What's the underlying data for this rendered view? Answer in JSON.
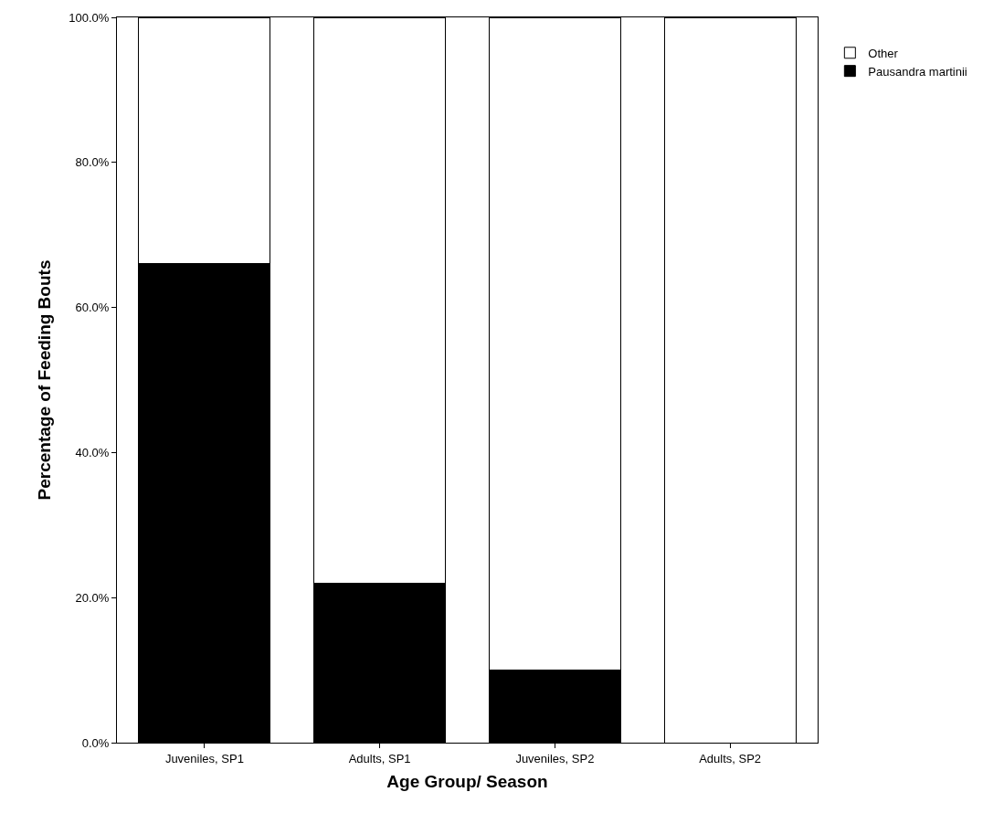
{
  "chart_data": {
    "type": "bar",
    "stacked": true,
    "xlabel": "Age Group/ Season",
    "ylabel": "Percentage of Feeding Bouts",
    "categories": [
      "Juveniles, SP1",
      "Adults, SP1",
      "Juveniles, SP2",
      "Adults, SP2"
    ],
    "series": [
      {
        "name": "Pausandra martinii",
        "color": "#000000",
        "values": [
          66,
          22,
          10,
          0
        ]
      },
      {
        "name": "Other",
        "color": "#ffffff",
        "values": [
          34,
          78,
          90,
          100
        ]
      }
    ],
    "ylim": [
      0,
      100
    ],
    "yticks": [
      {
        "value": 0,
        "label": "0.0%"
      },
      {
        "value": 20,
        "label": "20.0%"
      },
      {
        "value": 40,
        "label": "40.0%"
      },
      {
        "value": 60,
        "label": "60.0%"
      },
      {
        "value": 80,
        "label": "80.0%"
      },
      {
        "value": 100,
        "label": "100.0%"
      }
    ],
    "grid": false,
    "legend": "top right"
  }
}
